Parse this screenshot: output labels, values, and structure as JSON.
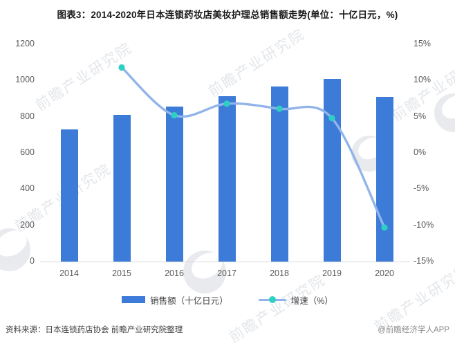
{
  "title": "图表3：2014-2020年日本连锁药妆店美妆护理总销售额走势(单位：十亿日元，%)",
  "footer": {
    "source": "资料来源：日本连锁药店协会 前瞻产业研究院整理",
    "credit": "@前瞻经济学人APP"
  },
  "watermark": {
    "text": "前瞻产业研究院"
  },
  "colors": {
    "bar": "#3d7bd8",
    "line": "#91b4ea",
    "marker": "#2ed0c4",
    "axis_text": "#595959",
    "axis_line": "#d9d9d9"
  },
  "chart_data": {
    "type": "bar",
    "title": "图表3：2014-2020年日本连锁药妆店美妆护理总销售额走势(单位：十亿日元，%)",
    "categories": [
      "2014",
      "2015",
      "2016",
      "2017",
      "2018",
      "2019",
      "2020"
    ],
    "series": [
      {
        "name": "销售额（十亿日元）",
        "kind": "bar",
        "axis": "left",
        "values": [
          730,
          810,
          855,
          915,
          965,
          1010,
          910
        ],
        "color": "#3d7bd8"
      },
      {
        "name": "增速（%）",
        "kind": "line",
        "axis": "right",
        "values": [
          null,
          11.8,
          5.2,
          6.8,
          6.1,
          4.8,
          -10.3
        ],
        "color": "#91b4ea",
        "marker_color": "#2ed0c4"
      }
    ],
    "left_axis": {
      "min": 0,
      "max": 1200,
      "step": 200,
      "ticks": [
        "1200",
        "1000",
        "800",
        "600",
        "400",
        "200",
        "0"
      ]
    },
    "right_axis": {
      "min": -15,
      "max": 15,
      "step": 5,
      "ticks": [
        "15%",
        "10%",
        "5%",
        "0%",
        "-5%",
        "-10%",
        "-15%"
      ]
    },
    "grid": false,
    "legend_position": "bottom"
  }
}
